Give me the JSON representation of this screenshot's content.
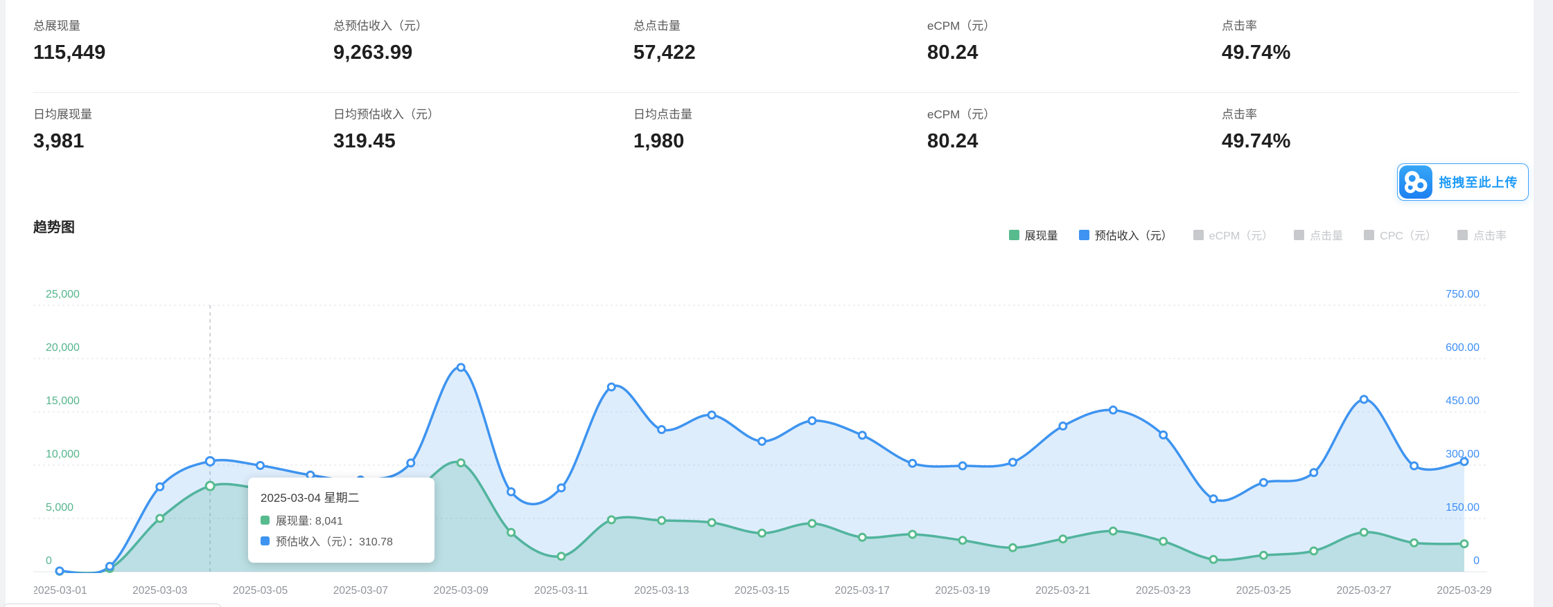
{
  "stats": {
    "rows": [
      {
        "cells": [
          {
            "label": "总展现量",
            "value": "115,449"
          },
          {
            "label": "总预估收入（元）",
            "value": "9,263.99"
          },
          {
            "label": "总点击量",
            "value": "57,422"
          },
          {
            "label": "eCPM（元）",
            "value": "80.24"
          },
          {
            "label": "点击率",
            "value": "49.74%"
          }
        ]
      },
      {
        "cells": [
          {
            "label": "日均展现量",
            "value": "3,981"
          },
          {
            "label": "日均预估收入（元）",
            "value": "319.45"
          },
          {
            "label": "日均点击量",
            "value": "1,980"
          },
          {
            "label": "eCPM（元）",
            "value": "80.24"
          },
          {
            "label": "点击率",
            "value": "49.74%"
          }
        ]
      }
    ]
  },
  "upload": {
    "label": "拖拽至此上传",
    "icon": "baidu-netdisk-cloud-icon",
    "accent": "#1e9bf7"
  },
  "trend": {
    "title": "趋势图"
  },
  "legend": [
    {
      "label": "展现量",
      "color": "#57bb8e",
      "active": true
    },
    {
      "label": "预估收入（元）",
      "color": "#3e94f0",
      "active": true
    },
    {
      "label": "eCPM（元）",
      "color": "#c8c9cc",
      "active": false
    },
    {
      "label": "点击量",
      "color": "#c8c9cc",
      "active": false
    },
    {
      "label": "CPC（元）",
      "color": "#c8c9cc",
      "active": false
    },
    {
      "label": "点击率",
      "color": "#c8c9cc",
      "active": false
    }
  ],
  "tooltip": {
    "title": "2025-03-04 星期二",
    "rows": [
      {
        "color": "#57bb8e",
        "text": "展现量: 8,041"
      },
      {
        "color": "#3e94f0",
        "text": "预估收入（元）：310.78"
      }
    ]
  },
  "chart_data": {
    "type": "line",
    "smooth": true,
    "grid": true,
    "hover_index": 3,
    "x": [
      "2025-03-01",
      "2025-03-02",
      "2025-03-03",
      "2025-03-04",
      "2025-03-05",
      "2025-03-06",
      "2025-03-07",
      "2025-03-08",
      "2025-03-09",
      "2025-03-10",
      "2025-03-11",
      "2025-03-12",
      "2025-03-13",
      "2025-03-14",
      "2025-03-15",
      "2025-03-16",
      "2025-03-17",
      "2025-03-18",
      "2025-03-19",
      "2025-03-20",
      "2025-03-21",
      "2025-03-22",
      "2025-03-23",
      "2025-03-24",
      "2025-03-25",
      "2025-03-26",
      "2025-03-27",
      "2025-03-28",
      "2025-03-29"
    ],
    "x_tick_every": 2,
    "series": [
      {
        "name": "展现量",
        "axis": "left",
        "color": "#57bb8e",
        "fill": "rgba(87,187,142,0.25)",
        "values": [
          40,
          300,
          5000,
          8041,
          7800,
          7150,
          6600,
          7421,
          10215,
          3682,
          1448,
          4870,
          4805,
          4610,
          3617,
          4526,
          3227,
          3507,
          2942,
          2253,
          3072,
          3811,
          2850,
          1149,
          1539,
          1948,
          3701,
          2708,
          2617
        ]
      },
      {
        "name": "预估收入（元）",
        "axis": "right",
        "color": "#3e94f0",
        "fill": "rgba(62,148,240,0.17)",
        "values": [
          2.21,
          15,
          239,
          310.78,
          299,
          272,
          258,
          306,
          575,
          225,
          236,
          520,
          400,
          441,
          367,
          425,
          384,
          305,
          298,
          308,
          410,
          455,
          385,
          205,
          251,
          279,
          485,
          298,
          310
        ]
      }
    ],
    "left_axis": {
      "min": 0,
      "max": 25000,
      "ticks": [
        "0",
        "5,000",
        "10,000",
        "15,000",
        "20,000",
        "25,000"
      ],
      "color": "#55b58c"
    },
    "right_axis": {
      "min": 0,
      "max": 750,
      "ticks": [
        "0",
        "150.00",
        "300.00",
        "450.00",
        "600.00",
        "750.00"
      ],
      "color": "#3f8ff7"
    },
    "x_label_color": "#8f939a",
    "title": "趋势图"
  }
}
